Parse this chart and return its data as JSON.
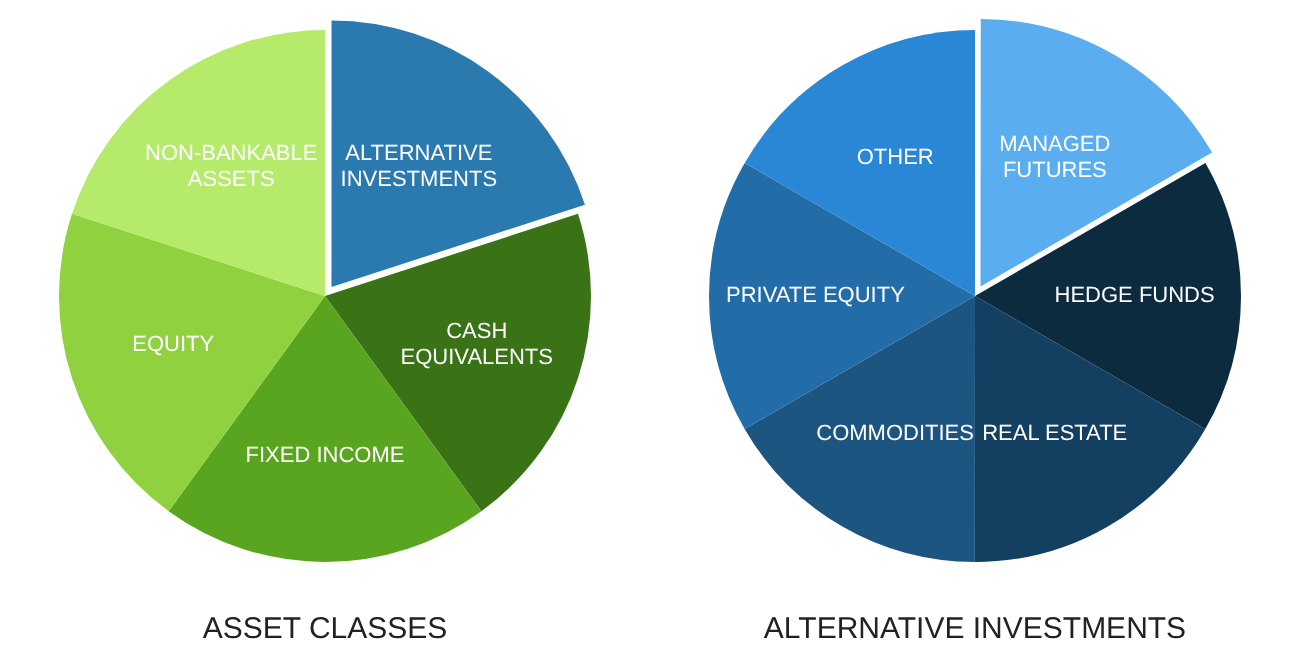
{
  "chart_data": [
    {
      "type": "pie",
      "title": "ASSET CLASSES",
      "categories": [
        "ALTERNATIVE INVESTMENTS",
        "CASH EQUIVALENTS",
        "FIXED INCOME",
        "EQUITY",
        "NON-BANKABLE ASSETS"
      ],
      "values": [
        20,
        20,
        20,
        20,
        20
      ],
      "colors": [
        "#2a7ab0",
        "#3a7216",
        "#5aa51f",
        "#8fd13f",
        "#b5ea6b"
      ],
      "legend": false
    },
    {
      "type": "pie",
      "title": "ALTERNATIVE INVESTMENTS",
      "categories": [
        "MANAGED FUTURES",
        "HEDGE FUNDS",
        "REAL ESTATE",
        "COMMODITIES",
        "PRIVATE EQUITY",
        "OTHER"
      ],
      "values": [
        16.67,
        16.67,
        16.67,
        16.66,
        16.67,
        16.66
      ],
      "colors": [
        "#5aaef0",
        "#0d2b3e",
        "#133f60",
        "#1c5580",
        "#226da8",
        "#2a87d6"
      ],
      "legend": false
    }
  ]
}
